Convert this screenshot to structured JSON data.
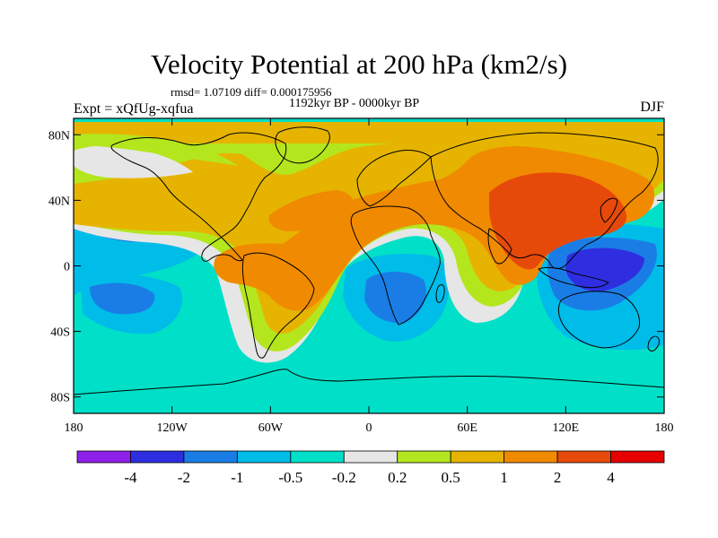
{
  "header": {
    "title": "Velocity Potential at 200 hPa (km2/s)",
    "stats": "rmsd= 1.07109 diff= 0.000175956",
    "period": "1192kyr BP - 0000kyr BP",
    "experiment": "Expt = xQfUg-xqfua",
    "season": "DJF"
  },
  "axes": {
    "x_ticks": [
      {
        "lon": -180,
        "label": "180"
      },
      {
        "lon": -120,
        "label": "120W"
      },
      {
        "lon": -60,
        "label": "60W"
      },
      {
        "lon": 0,
        "label": "0"
      },
      {
        "lon": 60,
        "label": "60E"
      },
      {
        "lon": 120,
        "label": "120E"
      },
      {
        "lon": 180,
        "label": "180"
      }
    ],
    "y_ticks": [
      {
        "lat": 80,
        "label": "80N"
      },
      {
        "lat": 40,
        "label": "40N"
      },
      {
        "lat": 0,
        "label": "0"
      },
      {
        "lat": -40,
        "label": "40S"
      },
      {
        "lat": -80,
        "label": "80S"
      }
    ],
    "lon_range": [
      -180,
      180
    ],
    "lat_range": [
      -90,
      90
    ]
  },
  "colorbar": {
    "colors": [
      "#8e1fe8",
      "#2e2ee0",
      "#1a7de6",
      "#00bce9",
      "#00e0c8",
      "#e6e6e6",
      "#b4e61e",
      "#e6b400",
      "#f08a00",
      "#e64a0a",
      "#e60000"
    ],
    "labels": [
      "-4",
      "-2",
      "-1",
      "-0.5",
      "-0.2",
      "0.2",
      "0.5",
      "1",
      "2",
      "4"
    ]
  },
  "field_levels": {
    "background": "#00e0c8",
    "pos_0_2": "#e6e6e6",
    "pos_0_5": "#b4e61e",
    "pos_1": "#e6b400",
    "pos_2": "#f08a00",
    "pos_4": "#e64a0a",
    "neg_0_5": "#00bce9",
    "neg_1": "#1a7de6",
    "neg_2": "#2e2ee0"
  }
}
